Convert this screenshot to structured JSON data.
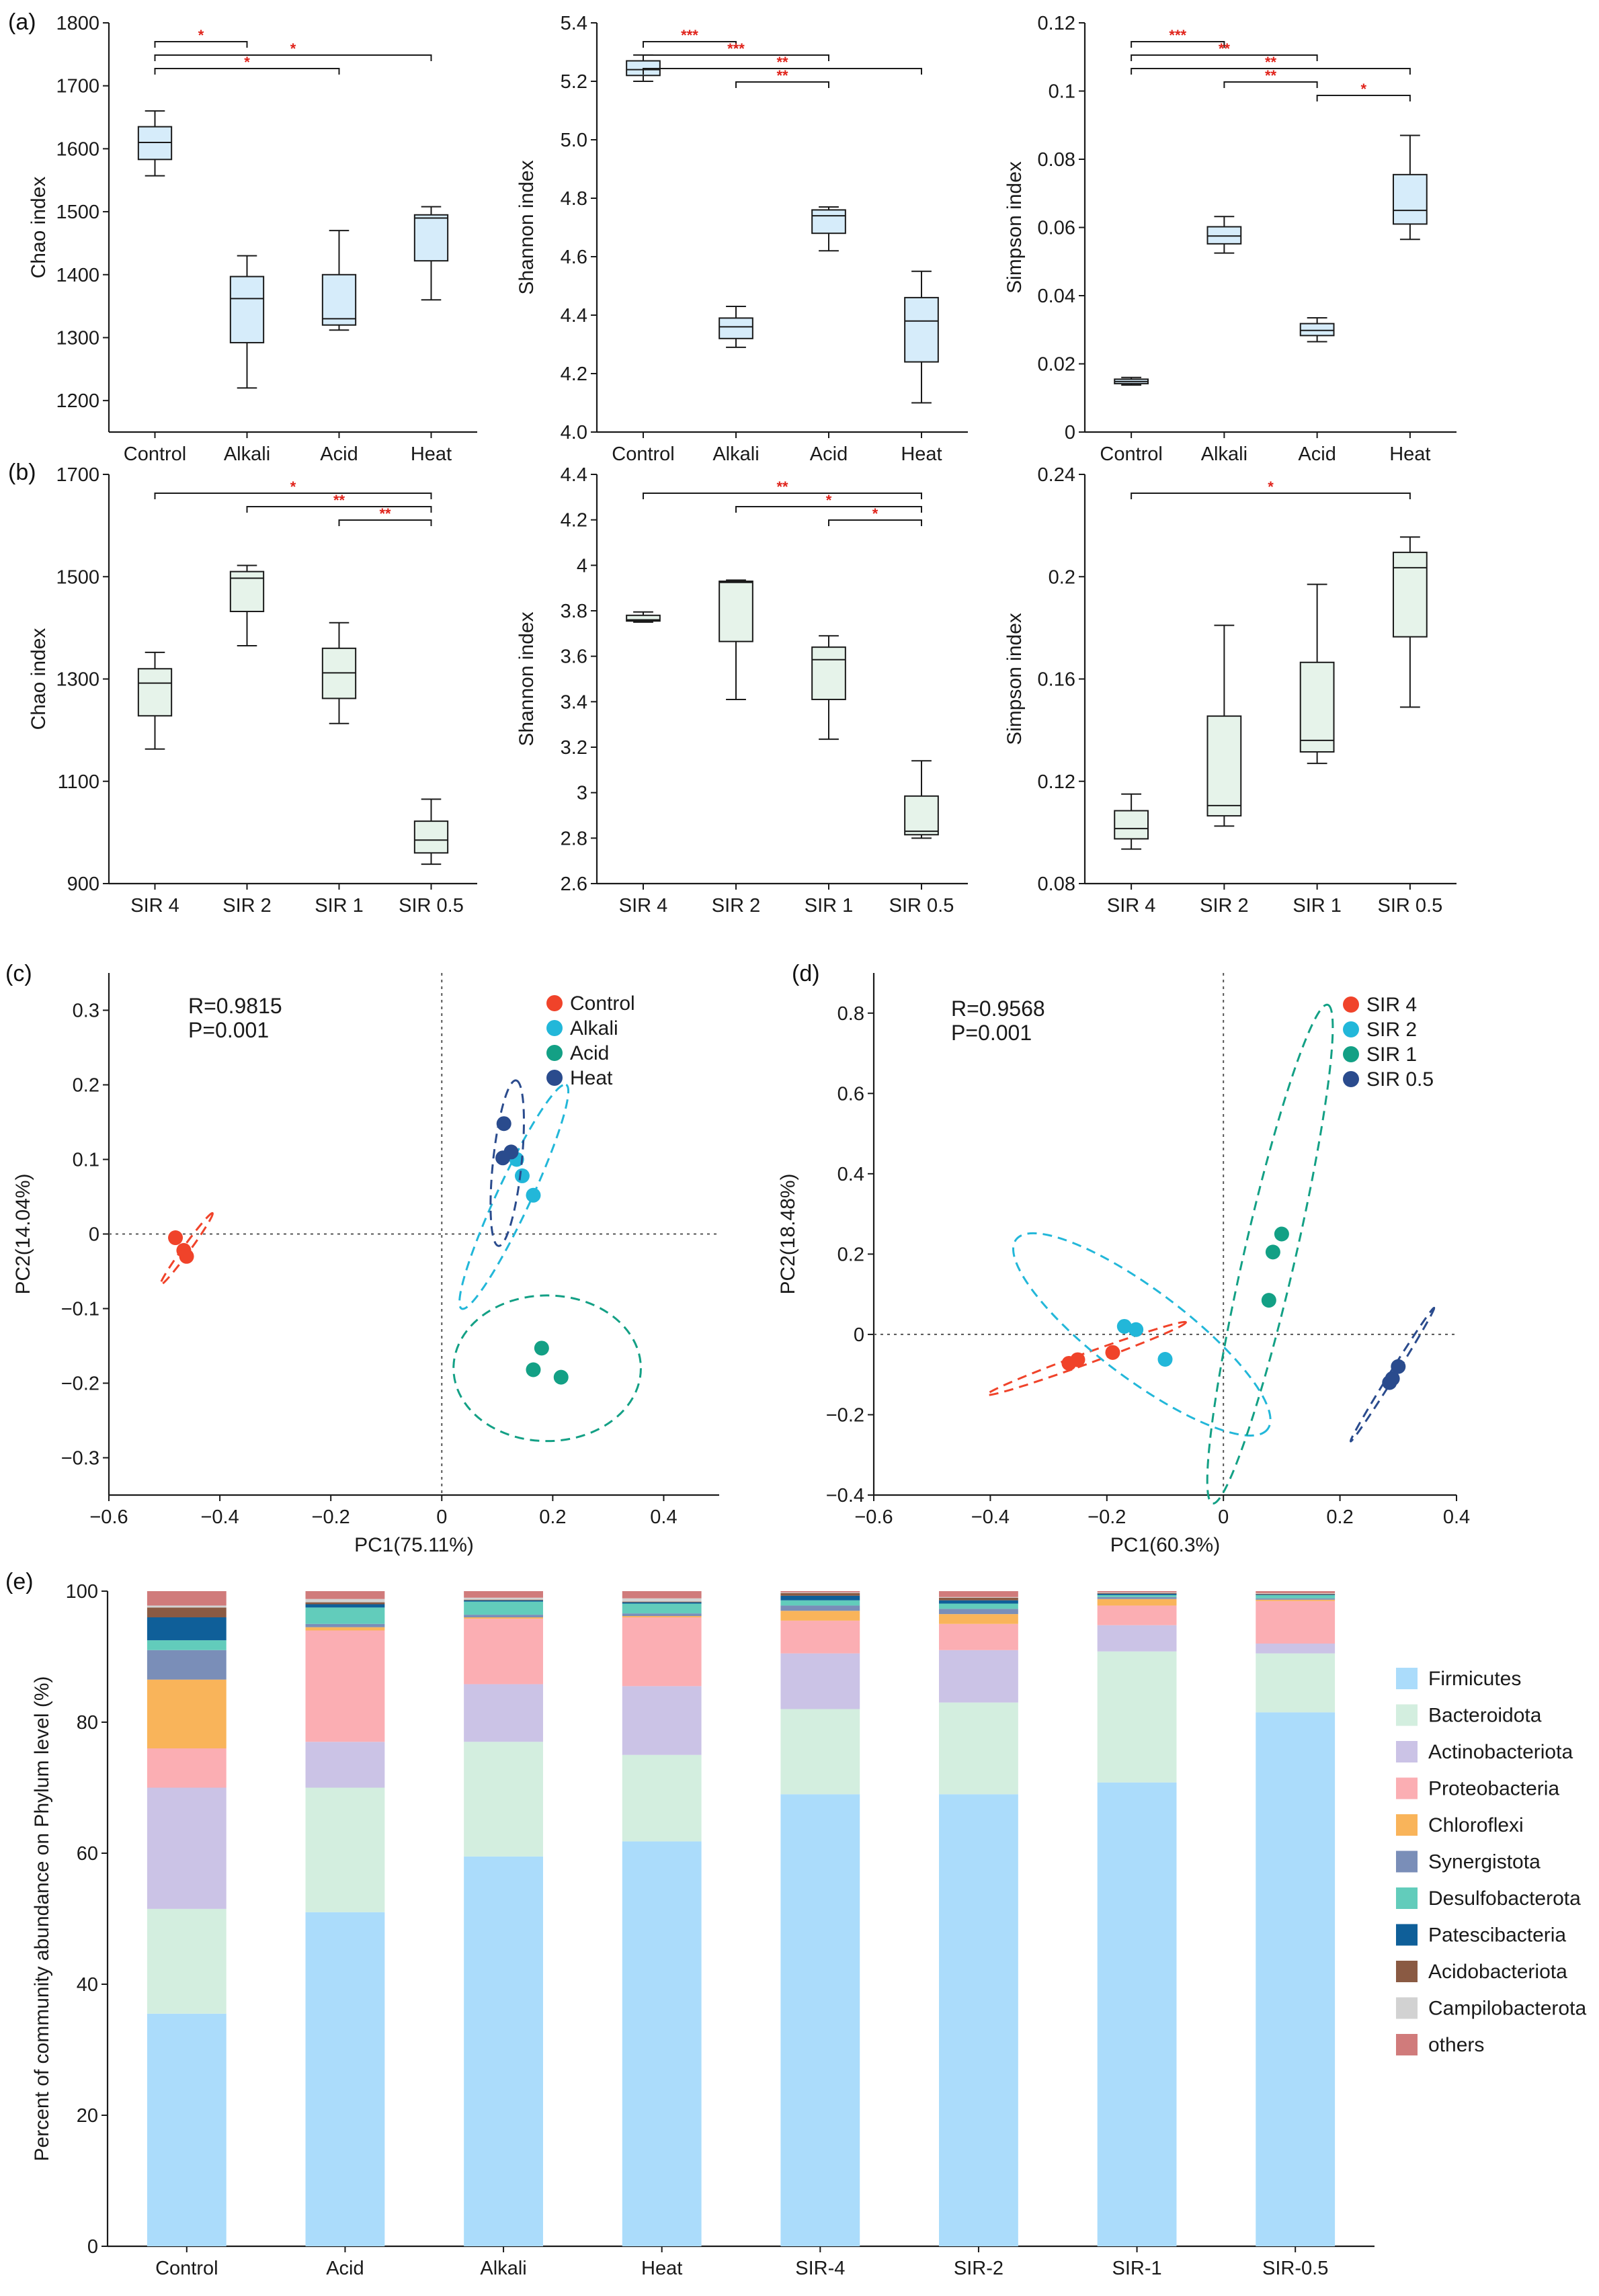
{
  "panel_labels": {
    "a": "(a)",
    "b": "(b)",
    "c": "(c)",
    "d": "(d)",
    "e": "(e)"
  },
  "colors": {
    "box_a": "#d6ecfa",
    "box_b": "#e6f3ea",
    "sig": "#e0231b",
    "control": "#f0432a",
    "alkali": "#22b7d9",
    "acid": "#13a085",
    "heat": "#2a4b8d",
    "Firmicutes": "#abdcfb",
    "Bacteroidota": "#d3eedf",
    "Actinobacteriota": "#cbc3e6",
    "Proteobacteria": "#fbaeb3",
    "Chloroflexi": "#f9b45a",
    "Synergistota": "#7a8eb8",
    "Desulfobacterota": "#62ccbb",
    "Patescibacteria": "#0f5f99",
    "Acidobacteriota": "#8a5a43",
    "Campilobacterota": "#d2d2d2",
    "others": "#d07b7b"
  },
  "chart_data": [
    {
      "id": "a1",
      "type": "box",
      "panel": "(a)",
      "ylabel": "Chao index",
      "categories": [
        "Control",
        "Alkali",
        "Acid",
        "Heat"
      ],
      "ylim": [
        1150,
        1800
      ],
      "yticks": [
        1200,
        1300,
        1400,
        1500,
        1600,
        1700,
        1800
      ],
      "tick_labels": [
        "1200",
        "1300",
        "1400",
        "1500",
        "1600",
        "1700",
        "1800"
      ],
      "boxes": [
        {
          "min": 1557,
          "q1": 1583,
          "median": 1610,
          "q3": 1635,
          "max": 1660
        },
        {
          "min": 1220,
          "q1": 1292,
          "median": 1362,
          "q3": 1397,
          "max": 1430
        },
        {
          "min": 1312,
          "q1": 1320,
          "median": 1330,
          "q3": 1400,
          "max": 1470
        },
        {
          "min": 1360,
          "q1": 1422,
          "median": 1490,
          "q3": 1495,
          "max": 1508
        }
      ],
      "significance": [
        {
          "from": 0,
          "to": 1,
          "label": "*",
          "level": 0
        },
        {
          "from": 0,
          "to": 3,
          "label": "*",
          "level": 1
        },
        {
          "from": 0,
          "to": 2,
          "label": "*",
          "level": 2
        }
      ]
    },
    {
      "id": "a2",
      "type": "box",
      "panel": "(a)",
      "ylabel": "Shannon index",
      "categories": [
        "Control",
        "Alkali",
        "Acid",
        "Heat"
      ],
      "ylim": [
        4.0,
        5.4
      ],
      "yticks": [
        4.0,
        4.2,
        4.4,
        4.6,
        4.8,
        5.0,
        5.2,
        5.4
      ],
      "tick_labels": [
        "4.0",
        "4.2",
        "4.4",
        "4.6",
        "4.8",
        "5.0",
        "5.2",
        "5.4"
      ],
      "boxes": [
        {
          "min": 5.2,
          "q1": 5.22,
          "median": 5.24,
          "q3": 5.27,
          "max": 5.29
        },
        {
          "min": 4.29,
          "q1": 4.32,
          "median": 4.36,
          "q3": 4.39,
          "max": 4.43
        },
        {
          "min": 4.62,
          "q1": 4.68,
          "median": 4.74,
          "q3": 4.76,
          "max": 4.77
        },
        {
          "min": 4.1,
          "q1": 4.24,
          "median": 4.38,
          "q3": 4.46,
          "max": 4.55
        }
      ],
      "significance": [
        {
          "from": 0,
          "to": 1,
          "label": "***",
          "level": 0
        },
        {
          "from": 0,
          "to": 2,
          "label": "***",
          "level": 1
        },
        {
          "from": 0,
          "to": 3,
          "label": "**",
          "level": 2
        },
        {
          "from": 1,
          "to": 2,
          "label": "**",
          "level": 3
        }
      ]
    },
    {
      "id": "a3",
      "type": "box",
      "panel": "(a)",
      "ylabel": "Simpson index",
      "categories": [
        "Control",
        "Alkali",
        "Acid",
        "Heat"
      ],
      "ylim": [
        0,
        0.12
      ],
      "yticks": [
        0,
        0.02,
        0.04,
        0.06,
        0.08,
        0.1,
        0.12
      ],
      "tick_labels": [
        "0",
        "0.02",
        "0.04",
        "0.06",
        "0.08",
        "0.1",
        "0.12"
      ],
      "boxes": [
        {
          "min": 0.0138,
          "q1": 0.0142,
          "median": 0.0148,
          "q3": 0.0155,
          "max": 0.016
        },
        {
          "min": 0.0525,
          "q1": 0.0552,
          "median": 0.0575,
          "q3": 0.0602,
          "max": 0.0632
        },
        {
          "min": 0.0265,
          "q1": 0.0283,
          "median": 0.0298,
          "q3": 0.0318,
          "max": 0.0335
        },
        {
          "min": 0.0565,
          "q1": 0.061,
          "median": 0.065,
          "q3": 0.0755,
          "max": 0.087
        }
      ],
      "significance": [
        {
          "from": 0,
          "to": 1,
          "label": "***",
          "level": 0
        },
        {
          "from": 0,
          "to": 2,
          "label": "**",
          "level": 1
        },
        {
          "from": 0,
          "to": 3,
          "label": "**",
          "level": 2
        },
        {
          "from": 1,
          "to": 2,
          "label": "**",
          "level": 3
        },
        {
          "from": 2,
          "to": 3,
          "label": "*",
          "level": 4
        }
      ]
    },
    {
      "id": "b1",
      "type": "box",
      "panel": "(b)",
      "ylabel": "Chao index",
      "categories": [
        "SIR 4",
        "SIR 2",
        "SIR 1",
        "SIR 0.5"
      ],
      "ylim": [
        900,
        1700
      ],
      "yticks": [
        900,
        1100,
        1300,
        1500,
        1700
      ],
      "tick_labels": [
        "900",
        "1100",
        "1300",
        "1500",
        "1700"
      ],
      "boxes": [
        {
          "min": 1163,
          "q1": 1228,
          "median": 1292,
          "q3": 1320,
          "max": 1352
        },
        {
          "min": 1365,
          "q1": 1432,
          "median": 1497,
          "q3": 1510,
          "max": 1522
        },
        {
          "min": 1213,
          "q1": 1262,
          "median": 1312,
          "q3": 1360,
          "max": 1410
        },
        {
          "min": 938,
          "q1": 960,
          "median": 985,
          "q3": 1022,
          "max": 1065
        }
      ],
      "significance": [
        {
          "from": 0,
          "to": 3,
          "label": "*",
          "level": 0
        },
        {
          "from": 1,
          "to": 3,
          "label": "**",
          "level": 1
        },
        {
          "from": 2,
          "to": 3,
          "label": "**",
          "level": 2
        }
      ]
    },
    {
      "id": "b2",
      "type": "box",
      "panel": "(b)",
      "ylabel": "Shannon index",
      "categories": [
        "SIR 4",
        "SIR 2",
        "SIR 1",
        "SIR 0.5"
      ],
      "ylim": [
        2.6,
        4.4
      ],
      "yticks": [
        2.6,
        2.8,
        3.0,
        3.2,
        3.4,
        3.6,
        3.8,
        4.0,
        4.2,
        4.4
      ],
      "tick_labels": [
        "2.6",
        "2.8",
        "3",
        "3.2",
        "3.4",
        "3.6",
        "3.8",
        "4",
        "4.2",
        "4.4"
      ],
      "boxes": [
        {
          "min": 3.75,
          "q1": 3.755,
          "median": 3.76,
          "q3": 3.78,
          "max": 3.795
        },
        {
          "min": 3.41,
          "q1": 3.665,
          "median": 3.925,
          "q3": 3.93,
          "max": 3.935
        },
        {
          "min": 3.235,
          "q1": 3.41,
          "median": 3.585,
          "q3": 3.64,
          "max": 3.69
        },
        {
          "min": 2.8,
          "q1": 2.815,
          "median": 2.83,
          "q3": 2.985,
          "max": 3.14
        }
      ],
      "significance": [
        {
          "from": 0,
          "to": 3,
          "label": "**",
          "level": 0
        },
        {
          "from": 1,
          "to": 3,
          "label": "*",
          "level": 1
        },
        {
          "from": 2,
          "to": 3,
          "label": "*",
          "level": 2
        }
      ]
    },
    {
      "id": "b3",
      "type": "box",
      "panel": "(b)",
      "ylabel": "Simpson index",
      "categories": [
        "SIR 4",
        "SIR 2",
        "SIR 1",
        "SIR 0.5"
      ],
      "ylim": [
        0.08,
        0.24
      ],
      "yticks": [
        0.08,
        0.12,
        0.16,
        0.2,
        0.24
      ],
      "tick_labels": [
        "0.08",
        "0.12",
        "0.16",
        "0.2",
        "0.24"
      ],
      "boxes": [
        {
          "min": 0.0935,
          "q1": 0.0975,
          "median": 0.1015,
          "q3": 0.1085,
          "max": 0.115
        },
        {
          "min": 0.1025,
          "q1": 0.1065,
          "median": 0.1105,
          "q3": 0.1455,
          "max": 0.181
        },
        {
          "min": 0.127,
          "q1": 0.1315,
          "median": 0.136,
          "q3": 0.1665,
          "max": 0.197
        },
        {
          "min": 0.149,
          "q1": 0.1765,
          "median": 0.2035,
          "q3": 0.2095,
          "max": 0.2155
        }
      ],
      "significance": [
        {
          "from": 0,
          "to": 3,
          "label": "*",
          "level": 0
        }
      ]
    },
    {
      "id": "c",
      "type": "scatter",
      "panel": "(c)",
      "xlabel": "PC1(75.11%)",
      "ylabel": "PC2(14.04%)",
      "xlim": [
        -0.6,
        0.5
      ],
      "ylim": [
        -0.35,
        0.35
      ],
      "xticks": [
        -0.6,
        -0.4,
        -0.2,
        0,
        0.2,
        0.4
      ],
      "xtick_labels": [
        "−0.6",
        "−0.4",
        "−0.2",
        "0",
        "0.2",
        "0.4"
      ],
      "yticks": [
        -0.3,
        -0.2,
        -0.1,
        0,
        0.1,
        0.2,
        0.3
      ],
      "ytick_labels": [
        "−0.3",
        "−0.2",
        "−0.1",
        "0",
        "0.1",
        "0.2",
        "0.3"
      ],
      "stats": [
        "R=0.9815",
        "P=0.001"
      ],
      "series": [
        {
          "name": "Control",
          "color": "#f0432a",
          "points": [
            [
              -0.48,
              -0.005
            ],
            [
              -0.465,
              -0.022
            ],
            [
              -0.46,
              -0.03
            ]
          ],
          "ellipse": {
            "cx": -0.46,
            "cy": -0.02,
            "rx": 0.068,
            "ry": 0.0055,
            "angle_deg": -54
          }
        },
        {
          "name": "Alkali",
          "color": "#22b7d9",
          "points": [
            [
              0.135,
              0.1
            ],
            [
              0.145,
              0.078
            ],
            [
              0.165,
              0.052
            ]
          ],
          "ellipse": {
            "cx": 0.13,
            "cy": 0.05,
            "rx": 0.19,
            "ry": 0.026,
            "angle_deg": -65
          }
        },
        {
          "name": "Acid",
          "color": "#13a085",
          "points": [
            [
              0.18,
              -0.153
            ],
            [
              0.165,
              -0.182
            ],
            [
              0.215,
              -0.192
            ]
          ],
          "ellipse": {
            "cx": 0.19,
            "cy": -0.18,
            "rx": 0.144,
            "ry": 0.112,
            "angle_deg": 0
          }
        },
        {
          "name": "Heat",
          "color": "#2a4b8d",
          "points": [
            [
              0.112,
              0.148
            ],
            [
              0.125,
              0.11
            ],
            [
              0.11,
              0.102
            ]
          ],
          "ellipse": {
            "cx": 0.118,
            "cy": 0.095,
            "rx": 0.128,
            "ry": 0.022,
            "angle_deg": -84
          }
        }
      ]
    },
    {
      "id": "d",
      "type": "scatter",
      "panel": "(d)",
      "xlabel": "PC1(60.3%)",
      "ylabel": "PC2(18.48%)",
      "xlim": [
        -0.6,
        0.4
      ],
      "ylim": [
        -0.4,
        0.9
      ],
      "xticks": [
        -0.6,
        -0.4,
        -0.2,
        0,
        0.2,
        0.4
      ],
      "xtick_labels": [
        "−0.6",
        "−0.4",
        "−0.2",
        "0",
        "0.2",
        "0.4"
      ],
      "yticks": [
        -0.4,
        -0.2,
        0,
        0.2,
        0.4,
        0.6,
        0.8
      ],
      "ytick_labels": [
        "−0.4",
        "−0.2",
        "0",
        "0.2",
        "0.4",
        "0.6",
        "0.8"
      ],
      "stats": [
        "R=0.9568",
        "P=0.001"
      ],
      "series": [
        {
          "name": "SIR 4",
          "color": "#f0432a",
          "points": [
            [
              -0.265,
              -0.072
            ],
            [
              -0.25,
              -0.063
            ],
            [
              -0.19,
              -0.045
            ]
          ],
          "ellipse": {
            "cx": -0.235,
            "cy": -0.06,
            "rx": 0.215,
            "ry": 0.011,
            "angle_deg": -20
          }
        },
        {
          "name": "SIR 2",
          "color": "#22b7d9",
          "points": [
            [
              -0.17,
              0.02
            ],
            [
              -0.15,
              0.012
            ],
            [
              -0.1,
              -0.062
            ]
          ],
          "ellipse": {
            "cx": -0.14,
            "cy": 0.0,
            "rx": 0.32,
            "ry": 0.09,
            "angle_deg": 37
          }
        },
        {
          "name": "SIR 1",
          "color": "#13a085",
          "points": [
            [
              0.1,
              0.25
            ],
            [
              0.085,
              0.205
            ],
            [
              0.078,
              0.085
            ]
          ],
          "ellipse": {
            "cx": 0.08,
            "cy": 0.2,
            "rx": 0.52,
            "ry": 0.052,
            "angle_deg": -77
          }
        },
        {
          "name": "SIR 0.5",
          "color": "#2a4b8d",
          "points": [
            [
              0.3,
              -0.08
            ],
            [
              0.29,
              -0.11
            ],
            [
              0.285,
              -0.12
            ]
          ],
          "ellipse": {
            "cx": 0.29,
            "cy": -0.1,
            "rx": 0.16,
            "ry": 0.006,
            "angle_deg": -58
          }
        }
      ]
    },
    {
      "id": "e",
      "type": "bar",
      "stacked": true,
      "panel": "(e)",
      "ylabel": "Percent of community abundance on Phylum level (%)",
      "ylim": [
        0,
        100
      ],
      "yticks": [
        0,
        20,
        40,
        60,
        80,
        100
      ],
      "tick_labels": [
        "0",
        "20",
        "40",
        "60",
        "80",
        "100"
      ],
      "categories": [
        "Control",
        "Acid",
        "Alkali",
        "Heat",
        "SIR-4",
        "SIR-2",
        "SIR-1",
        "SIR-0.5"
      ],
      "series": [
        {
          "name": "Firmicutes",
          "values": [
            35.5,
            51,
            59.5,
            61.8,
            69,
            69,
            70.8,
            81.5
          ]
        },
        {
          "name": "Bacteroidota",
          "values": [
            16,
            19,
            17.5,
            13.2,
            13,
            14,
            20,
            9
          ]
        },
        {
          "name": "Actinobacteriota",
          "values": [
            18.5,
            7,
            8.8,
            10.5,
            8.5,
            8,
            4,
            1.5
          ]
        },
        {
          "name": "Proteobacteria",
          "values": [
            6,
            17,
            10,
            10.5,
            5,
            4,
            3,
            6.5
          ]
        },
        {
          "name": "Chloroflexi",
          "values": [
            10.5,
            0.5,
            0.2,
            0.2,
            1.5,
            1.5,
            1,
            0.2
          ]
        },
        {
          "name": "Synergistota",
          "values": [
            4.5,
            0.5,
            0.4,
            0.4,
            0.8,
            0.8,
            0.3,
            0.2
          ]
        },
        {
          "name": "Desulfobacterota",
          "values": [
            1.5,
            2.5,
            2,
            1.5,
            0.8,
            0.8,
            0.3,
            0.5
          ]
        },
        {
          "name": "Patescibacteria",
          "values": [
            3.5,
            0.5,
            0.2,
            0.2,
            0.7,
            0.5,
            0.2,
            0.1
          ]
        },
        {
          "name": "Acidobacteriota",
          "values": [
            1.5,
            0.3,
            0.1,
            0.1,
            0.4,
            0.4,
            0.1,
            0.1
          ]
        },
        {
          "name": "Campilobacterota",
          "values": [
            0.3,
            0.5,
            0.3,
            0.5,
            0.1,
            0.1,
            0.1,
            0.1
          ]
        },
        {
          "name": "others",
          "values": [
            2.2,
            1.2,
            1.0,
            1.1,
            0.2,
            0.9,
            0.2,
            0.3
          ]
        }
      ]
    }
  ]
}
